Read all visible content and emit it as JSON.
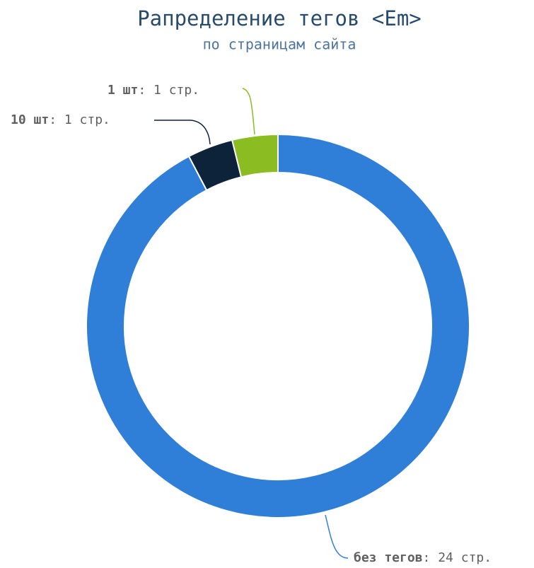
{
  "chart_data": {
    "type": "pie",
    "title": "Рапределение тегов <Em>",
    "subtitle": "по страницам сайта",
    "categories": [
      "без тегов",
      "10 шт",
      "1 шт"
    ],
    "values": [
      24,
      1,
      1
    ],
    "value_labels": [
      ": 24 стр.",
      ": 1 стр.",
      ": 1 стр."
    ],
    "colors": [
      "#2f7ed8",
      "#0d233a",
      "#8bbc21"
    ]
  }
}
